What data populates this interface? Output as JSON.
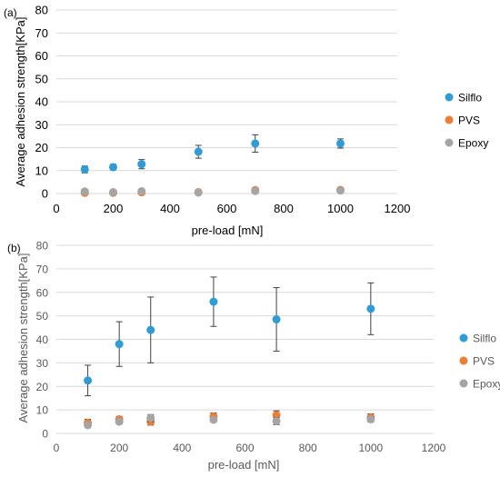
{
  "colors": {
    "Silflo": "#2e9cd6",
    "PVS": "#ed7d31",
    "Epoxy": "#a5a5a5",
    "grid": "#d9d9d9",
    "errorbar": "#404040"
  },
  "chart_data": [
    {
      "type": "scatter",
      "panel_label": "(a)",
      "xlabel": "pre-load [mN]",
      "ylabel": "Average adhesion strength[KPa]",
      "xlim": [
        0,
        1200
      ],
      "ylim": [
        0,
        80
      ],
      "xticks": [
        0,
        200,
        400,
        600,
        800,
        1000,
        1200
      ],
      "yticks": [
        0,
        10,
        20,
        30,
        40,
        50,
        60,
        70,
        80
      ],
      "grid": "horizontal",
      "legend": "right",
      "series": [
        {
          "name": "Silflo",
          "x": [
            100,
            200,
            300,
            500,
            700,
            1000
          ],
          "y": [
            10.5,
            11.5,
            12.8,
            18.2,
            21.8,
            21.8
          ],
          "err": [
            1.5,
            1.2,
            2.0,
            2.8,
            3.8,
            2.0
          ]
        },
        {
          "name": "PVS",
          "x": [
            100,
            200,
            300,
            500,
            700,
            1000
          ],
          "y": [
            0.3,
            0.3,
            0.5,
            0.6,
            1.5,
            1.6
          ],
          "err": [
            0.2,
            0.2,
            0.2,
            0.2,
            0.3,
            0.3
          ]
        },
        {
          "name": "Epoxy",
          "x": [
            100,
            200,
            300,
            500,
            700,
            1000
          ],
          "y": [
            0.9,
            0.6,
            1.0,
            0.4,
            1.1,
            1.3
          ],
          "err": [
            0.2,
            0.2,
            0.2,
            0.2,
            0.2,
            0.2
          ]
        }
      ]
    },
    {
      "type": "scatter",
      "panel_label": "(b)",
      "xlabel": "pre-load [mN]",
      "ylabel": "Average adhesion strength[KPa]",
      "xlim": [
        0,
        1200
      ],
      "ylim": [
        0,
        80
      ],
      "xticks": [
        0,
        200,
        400,
        600,
        800,
        1000,
        1200
      ],
      "yticks": [
        0,
        10,
        20,
        30,
        40,
        50,
        60,
        70,
        80
      ],
      "grid": "horizontal",
      "legend": "right",
      "series": [
        {
          "name": "Silflo",
          "x": [
            100,
            200,
            300,
            500,
            700,
            1000
          ],
          "y": [
            22.5,
            38,
            44,
            56,
            48.5,
            53
          ],
          "err": [
            6.5,
            9.5,
            14,
            10.5,
            13.5,
            11
          ]
        },
        {
          "name": "PVS",
          "x": [
            100,
            200,
            300,
            500,
            700,
            1000
          ],
          "y": [
            4.5,
            6.0,
            5.0,
            7.2,
            7.8,
            6.8
          ],
          "err": [
            1.5,
            1.2,
            1.5,
            1.5,
            1.8,
            1.5
          ]
        },
        {
          "name": "Epoxy",
          "x": [
            100,
            200,
            300,
            500,
            700,
            1000
          ],
          "y": [
            3.5,
            5.0,
            6.5,
            5.8,
            5.2,
            6.0
          ],
          "err": [
            1.0,
            1.0,
            1.5,
            1.0,
            1.5,
            1.2
          ]
        }
      ]
    }
  ]
}
